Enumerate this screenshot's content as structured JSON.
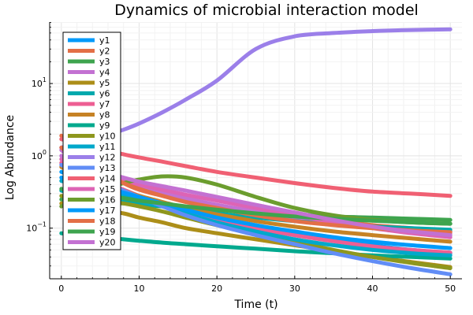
{
  "chart_data": {
    "type": "line",
    "title": "Dynamics of microbial interaction model",
    "xlabel": "Time (t)",
    "ylabel": "Log Abundance",
    "xlim": [
      -1.5,
      51.5
    ],
    "ylim_log10": [
      -1.7,
      1.85
    ],
    "yscale": "log",
    "grid": true,
    "legend_position": "top-left",
    "x_ticks": [
      {
        "value": 0,
        "label": "0"
      },
      {
        "value": 10,
        "label": "10"
      },
      {
        "value": 20,
        "label": "20"
      },
      {
        "value": 30,
        "label": "30"
      },
      {
        "value": 40,
        "label": "40"
      },
      {
        "value": 50,
        "label": "50"
      }
    ],
    "y_ticks": [
      {
        "value": 0.1,
        "base": "10",
        "exp": "−1"
      },
      {
        "value": 1,
        "base": "10",
        "exp": "0"
      },
      {
        "value": 10,
        "base": "10",
        "exp": "1"
      }
    ],
    "x": [
      0,
      2,
      5,
      8,
      10,
      13,
      16,
      20,
      25,
      30,
      35,
      40,
      45,
      50
    ],
    "series": [
      {
        "name": "y1",
        "color": "#009AFA",
        "values": [
          0.6,
          0.5,
          0.4,
          0.3,
          0.25,
          0.2,
          0.16,
          0.13,
          0.1,
          0.08,
          0.068,
          0.058,
          0.05,
          0.045
        ]
      },
      {
        "name": "y2",
        "color": "#E36F47",
        "values": [
          1.9,
          1.1,
          0.65,
          0.42,
          0.34,
          0.28,
          0.24,
          0.2,
          0.17,
          0.15,
          0.13,
          0.11,
          0.1,
          0.09
        ]
      },
      {
        "name": "y3",
        "color": "#3EA44E",
        "values": [
          0.25,
          0.24,
          0.23,
          0.22,
          0.21,
          0.2,
          0.19,
          0.18,
          0.165,
          0.155,
          0.145,
          0.14,
          0.135,
          0.13
        ]
      },
      {
        "name": "y4",
        "color": "#C371D2",
        "values": [
          1.2,
          0.85,
          0.6,
          0.45,
          0.38,
          0.31,
          0.26,
          0.21,
          0.17,
          0.14,
          0.12,
          0.105,
          0.095,
          0.085
        ]
      },
      {
        "name": "y5",
        "color": "#AC8E18",
        "values": [
          0.22,
          0.2,
          0.18,
          0.16,
          0.14,
          0.12,
          0.1,
          0.085,
          0.07,
          0.058,
          0.048,
          0.04,
          0.034,
          0.029
        ]
      },
      {
        "name": "y6",
        "color": "#00A9AD",
        "values": [
          0.33,
          0.3,
          0.27,
          0.24,
          0.22,
          0.2,
          0.18,
          0.16,
          0.14,
          0.125,
          0.115,
          0.105,
          0.1,
          0.095
        ]
      },
      {
        "name": "y7",
        "color": "#ED5E93",
        "values": [
          0.8,
          0.6,
          0.45,
          0.34,
          0.28,
          0.22,
          0.17,
          0.13,
          0.1,
          0.08,
          0.066,
          0.056,
          0.05,
          0.046
        ]
      },
      {
        "name": "y8",
        "color": "#C68225",
        "values": [
          0.7,
          0.55,
          0.42,
          0.33,
          0.28,
          0.23,
          0.19,
          0.155,
          0.125,
          0.105,
          0.09,
          0.08,
          0.072,
          0.065
        ]
      },
      {
        "name": "y9",
        "color": "#00A98E",
        "values": [
          0.085,
          0.08,
          0.075,
          0.07,
          0.067,
          0.063,
          0.06,
          0.056,
          0.052,
          0.048,
          0.045,
          0.042,
          0.04,
          0.038
        ]
      },
      {
        "name": "y10",
        "color": "#8E971D",
        "values": [
          0.28,
          0.26,
          0.24,
          0.22,
          0.2,
          0.17,
          0.14,
          0.11,
          0.085,
          0.065,
          0.05,
          0.04,
          0.033,
          0.028
        ]
      },
      {
        "name": "y11",
        "color": "#00A8CB",
        "values": [
          0.45,
          0.4,
          0.34,
          0.28,
          0.24,
          0.2,
          0.16,
          0.12,
          0.09,
          0.07,
          0.058,
          0.05,
          0.045,
          0.042
        ]
      },
      {
        "name": "y12",
        "color": "#9B7FE9",
        "values": [
          1.3,
          1.5,
          1.8,
          2.3,
          2.8,
          4.0,
          6.0,
          11.0,
          30.0,
          45.0,
          50.0,
          53.0,
          55.0,
          56.0
        ]
      },
      {
        "name": "y13",
        "color": "#618DF6",
        "values": [
          0.75,
          0.6,
          0.45,
          0.33,
          0.27,
          0.2,
          0.15,
          0.11,
          0.08,
          0.06,
          0.045,
          0.035,
          0.028,
          0.023
        ]
      },
      {
        "name": "y14",
        "color": "#F06073",
        "values": [
          1.7,
          1.5,
          1.25,
          1.05,
          0.95,
          0.83,
          0.72,
          0.6,
          0.5,
          0.42,
          0.36,
          0.32,
          0.3,
          0.28
        ]
      },
      {
        "name": "y15",
        "color": "#DD64B5",
        "values": [
          0.9,
          0.7,
          0.55,
          0.45,
          0.4,
          0.34,
          0.29,
          0.24,
          0.19,
          0.15,
          0.12,
          0.1,
          0.085,
          0.075
        ]
      },
      {
        "name": "y16",
        "color": "#6B9D2E",
        "values": [
          0.2,
          0.25,
          0.33,
          0.42,
          0.47,
          0.52,
          0.5,
          0.4,
          0.27,
          0.19,
          0.15,
          0.13,
          0.12,
          0.115
        ]
      },
      {
        "name": "y17",
        "color": "#009AFA",
        "values": [
          0.5,
          0.45,
          0.38,
          0.31,
          0.27,
          0.22,
          0.18,
          0.14,
          0.11,
          0.09,
          0.075,
          0.065,
          0.058,
          0.053
        ]
      },
      {
        "name": "y18",
        "color": "#E36F47",
        "values": [
          1.3,
          0.9,
          0.6,
          0.42,
          0.35,
          0.28,
          0.23,
          0.19,
          0.15,
          0.125,
          0.11,
          0.1,
          0.093,
          0.088
        ]
      },
      {
        "name": "y19",
        "color": "#3EA44E",
        "values": [
          0.35,
          0.32,
          0.29,
          0.26,
          0.24,
          0.22,
          0.2,
          0.18,
          0.16,
          0.145,
          0.135,
          0.127,
          0.12,
          0.115
        ]
      },
      {
        "name": "y20",
        "color": "#C371D2",
        "values": [
          1.0,
          0.8,
          0.62,
          0.5,
          0.44,
          0.38,
          0.33,
          0.27,
          0.21,
          0.165,
          0.13,
          0.105,
          0.09,
          0.08
        ]
      }
    ]
  }
}
